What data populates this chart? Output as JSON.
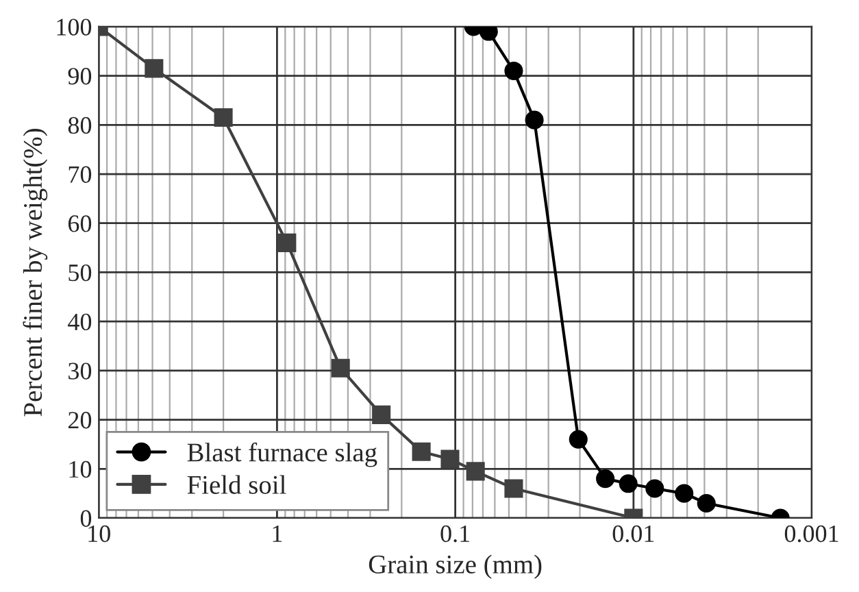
{
  "chart_data": {
    "type": "line",
    "xlabel": "Grain size (mm)",
    "ylabel": "Percent finer by weight(%)",
    "log": "x",
    "xlim": [
      10,
      0.001
    ],
    "xticks": [
      10,
      1,
      0.1,
      0.01,
      0.001
    ],
    "ylim": [
      0,
      100
    ],
    "yticks": [
      0,
      10,
      20,
      30,
      40,
      50,
      60,
      70,
      80,
      90,
      100
    ],
    "grid": true,
    "legend": "bottom left",
    "series": [
      {
        "name": "Blast furnace slag",
        "color": "#000000",
        "marker": "circle",
        "x": [
          0.079,
          0.065,
          0.047,
          0.036,
          0.0204,
          0.0144,
          0.0107,
          0.0076,
          0.0052,
          0.0039,
          0.0015
        ],
        "values": [
          100,
          99,
          91,
          81,
          16,
          8,
          7,
          6,
          5,
          3,
          0
        ]
      },
      {
        "name": "Field soil",
        "color": "#404040",
        "marker": "square",
        "x": [
          10,
          4.9,
          2.0,
          0.88,
          0.44,
          0.26,
          0.155,
          0.107,
          0.077,
          0.047,
          0.01
        ],
        "values": [
          100,
          91.5,
          81.5,
          56,
          30.5,
          21,
          13.5,
          12,
          9.5,
          6,
          0
        ]
      }
    ]
  }
}
